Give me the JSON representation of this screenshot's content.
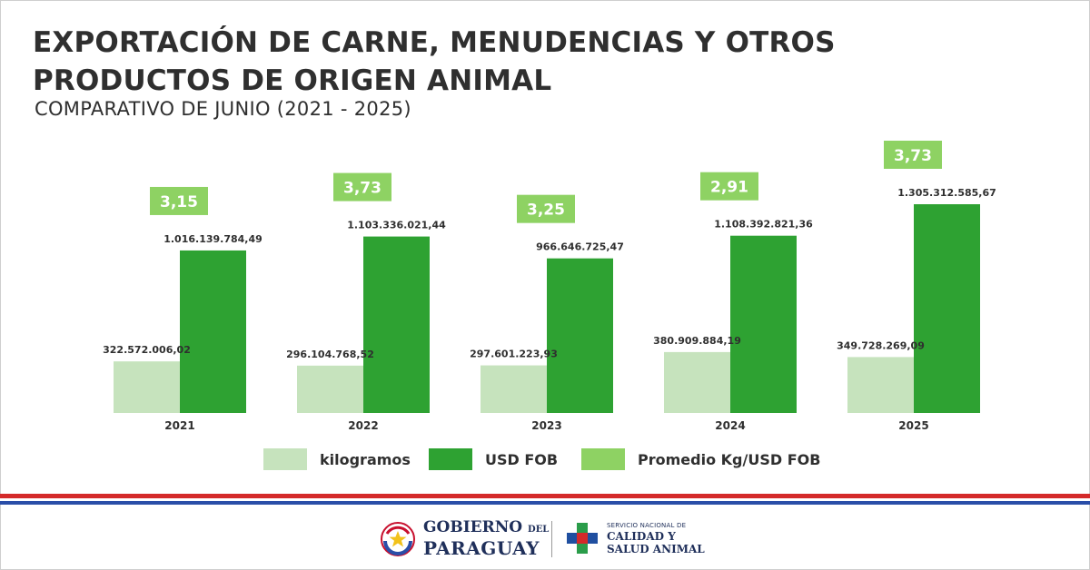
{
  "header": {
    "title_line1": "EXPORTACIÓN DE CARNE, MENUDENCIAS Y OTROS",
    "title_line2": "PRODUCTOS DE ORIGEN ANIMAL",
    "subtitle": "COMPARATIVO DE JUNIO (2021 - 2025)"
  },
  "chart_data": {
    "type": "bar",
    "title": "EXPORTACIÓN DE CARNE, MENUDENCIAS Y OTROS PRODUCTOS DE ORIGEN ANIMAL",
    "subtitle": "COMPARATIVO DE JUNIO (2021 - 2025)",
    "categories": [
      "2021",
      "2022",
      "2023",
      "2024",
      "2025"
    ],
    "series": [
      {
        "name": "kilogramos",
        "color": "#c6e3bd",
        "values": [
          322572006.02,
          296104768.52,
          297601223.93,
          380909884.19,
          349728269.09
        ],
        "labels": [
          "322.572.006,02",
          "296.104.768,52",
          "297.601.223,93",
          "380.909.884,19",
          "349.728.269,09"
        ]
      },
      {
        "name": "USD FOB",
        "color": "#2ea232",
        "values": [
          1016139784.49,
          1103336021.44,
          966646725.47,
          1108392821.36,
          1305312585.67
        ],
        "labels": [
          "1.016.139.784,49",
          "1.103.336.021,44",
          "966.646.725,47",
          "1.108.392.821,36",
          "1.305.312.585,67"
        ]
      },
      {
        "name": "Promedio Kg/USD FOB",
        "color": "#8ed263",
        "values": [
          3.15,
          3.73,
          3.25,
          2.91,
          3.73
        ],
        "labels": [
          "3,15",
          "3,73",
          "3,25",
          "2,91",
          "3,73"
        ]
      }
    ],
    "xlabel": "",
    "ylabel": "",
    "ylim": [
      0,
      1305312585.67
    ],
    "grid": false,
    "legend": "bottom"
  },
  "legend": [
    {
      "label": "kilogramos",
      "color": "#c6e3bd"
    },
    {
      "label": "USD FOB",
      "color": "#2ea232"
    },
    {
      "label": "Promedio Kg/USD FOB",
      "color": "#8ed263"
    }
  ],
  "footer": {
    "gob_line1": "GOBIERNO",
    "gob_del": "DEL",
    "gob_line2": "PARAGUAY",
    "sen_line1": "SERVICIO NACIONAL DE",
    "sen_line2": "CALIDAD Y",
    "sen_line3": "SALUD ANIMAL"
  }
}
